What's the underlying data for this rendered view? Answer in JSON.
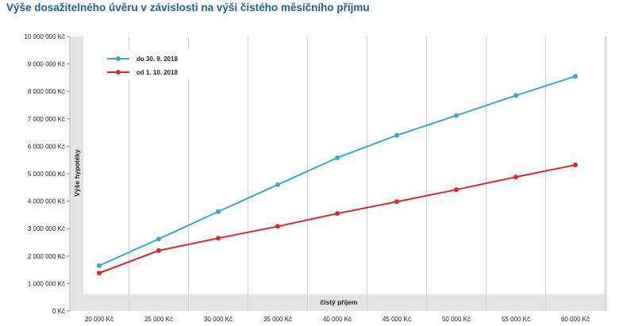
{
  "chart_data": {
    "type": "line",
    "title": "Výše dosažitelného úvěru v závislosti na výši čistého měsíčního příjmu",
    "xlabel": "čistý příjem",
    "ylabel": "Výše hypotéky",
    "categories": [
      "20 000 Kč",
      "25 000 Kč",
      "30 000 Kč",
      "35 000 Kč",
      "40 000 Kč",
      "45 000 Kč",
      "50 000 Kč",
      "55 000 Kč",
      "60 000 Kč"
    ],
    "yticks": [
      {
        "value": 0,
        "label": "0 Kč"
      },
      {
        "value": 1000000,
        "label": "1 000 000 Kč"
      },
      {
        "value": 2000000,
        "label": "2 000 000 Kč"
      },
      {
        "value": 3000000,
        "label": "3 000 000 Kč"
      },
      {
        "value": 4000000,
        "label": "4 000 000 Kč"
      },
      {
        "value": 5000000,
        "label": "5 000 000 Kč"
      },
      {
        "value": 6000000,
        "label": "6 000 000 Kč"
      },
      {
        "value": 7000000,
        "label": "7 000 000 Kč"
      },
      {
        "value": 8000000,
        "label": "8 000 000 Kč"
      },
      {
        "value": 9000000,
        "label": "9 000 000 Kč"
      },
      {
        "value": 10000000,
        "label": "10 000 000 Kč"
      }
    ],
    "ylim": [
      0,
      10000000
    ],
    "grid": "vertical",
    "legend_position": "top-left",
    "series": [
      {
        "name": "do 30. 9. 2018",
        "color": "#3fa3d4",
        "values": [
          1650000,
          2620000,
          3620000,
          4600000,
          5580000,
          6400000,
          7120000,
          7850000,
          8550000
        ]
      },
      {
        "name": "od 1. 10. 2018",
        "color": "#e0262a",
        "values": [
          1380000,
          2200000,
          2650000,
          3080000,
          3550000,
          3980000,
          4420000,
          4880000,
          5320000
        ]
      }
    ]
  }
}
